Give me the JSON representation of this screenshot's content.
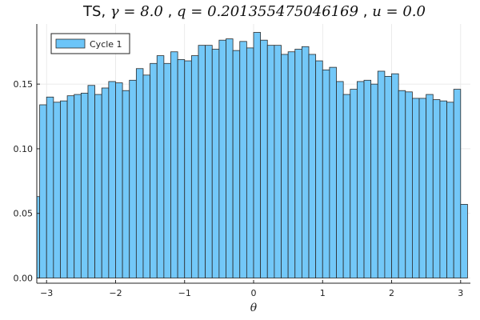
{
  "chart_data": {
    "type": "bar",
    "title": {
      "prefix": "TS, ",
      "gamma": "γ = 8.0",
      "q": "q = 0.201355475046169",
      "u": "u = 0.0",
      "sep": ", "
    },
    "xlabel": "θ",
    "ylabel": "",
    "xlim": [
      -3.1416,
      3.1416
    ],
    "ylim": [
      -0.004,
      0.1965
    ],
    "xticks": [
      -3,
      -2,
      -1,
      0,
      1,
      2,
      3
    ],
    "xtick_labels": [
      "−3",
      "−2",
      "−1",
      "0",
      "1",
      "2",
      "3"
    ],
    "yticks": [
      0.0,
      0.05,
      0.1,
      0.15
    ],
    "ytick_labels": [
      "0.00",
      "0.05",
      "0.10",
      "0.15"
    ],
    "grid": true,
    "legend_position": "top-left",
    "bin_edges_start": -3.2,
    "bin_width": 0.1,
    "series": [
      {
        "name": "Cycle 1",
        "color": "#6cc5f8",
        "edge_color": "#2b2b2b",
        "values": [
          0.063,
          0.134,
          0.14,
          0.136,
          0.137,
          0.141,
          0.142,
          0.143,
          0.149,
          0.142,
          0.147,
          0.152,
          0.151,
          0.145,
          0.153,
          0.162,
          0.157,
          0.166,
          0.172,
          0.166,
          0.175,
          0.169,
          0.168,
          0.172,
          0.18,
          0.18,
          0.177,
          0.184,
          0.185,
          0.176,
          0.183,
          0.178,
          0.19,
          0.184,
          0.18,
          0.18,
          0.173,
          0.175,
          0.177,
          0.179,
          0.173,
          0.168,
          0.161,
          0.163,
          0.152,
          0.142,
          0.146,
          0.152,
          0.153,
          0.15,
          0.16,
          0.156,
          0.158,
          0.145,
          0.144,
          0.139,
          0.139,
          0.142,
          0.138,
          0.137,
          0.136,
          0.146,
          0.057
        ]
      }
    ]
  }
}
